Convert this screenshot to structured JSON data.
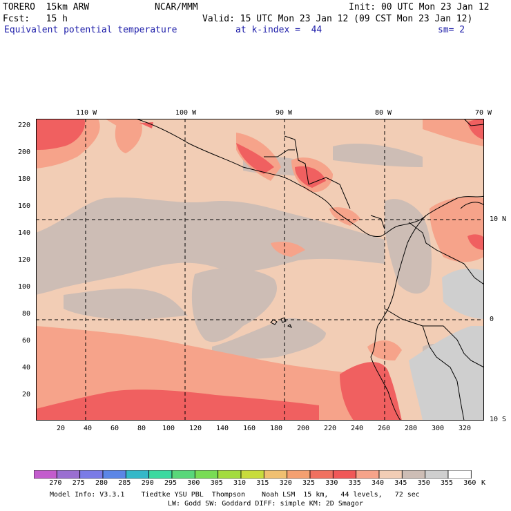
{
  "header": {
    "line1_left": "TORERO  15km ARW",
    "line1_center": "NCAR/MMM",
    "line1_right": "Init: 00 UTC Mon 23 Jan 12",
    "line2_left": "Fcst:   15 h",
    "line2_right": "Valid: 15 UTC Mon 23 Jan 12 (09 CST Mon 23 Jan 12)",
    "field_name": "Equivalent potential temperature",
    "level": "at k-index =  44",
    "smoothing": "sm= 2"
  },
  "map": {
    "longitude_labels": [
      "110 W",
      "100 W",
      "90 W",
      "80 W",
      "70 W"
    ],
    "latitude_labels": [
      "10 N",
      "0",
      "10 S"
    ],
    "y_grid_ticks": [
      "220",
      "200",
      "180",
      "160",
      "140",
      "120",
      "100",
      "80",
      "60",
      "40",
      "20"
    ],
    "x_grid_ticks": [
      "20",
      "40",
      "60",
      "80",
      "100",
      "120",
      "140",
      "160",
      "180",
      "200",
      "220",
      "240",
      "260",
      "280",
      "300",
      "320"
    ],
    "colors": {
      "band_340_345": "#f2cdb5",
      "band_345_350": "#cdbdb5",
      "band_350_355": "#cfcfcf",
      "band_335_340": "#f6a38a",
      "band_330_335": "#f06060",
      "coast": "#000000"
    }
  },
  "colorbar": {
    "labels": [
      "270",
      "275",
      "280",
      "285",
      "290",
      "295",
      "300",
      "305",
      "310",
      "315",
      "320",
      "325",
      "330",
      "335",
      "340",
      "345",
      "350",
      "355",
      "360"
    ],
    "unit": "K",
    "colors": [
      "#c35ccd",
      "#9a6fd1",
      "#7a7be6",
      "#5b86e6",
      "#35b8c8",
      "#3cd9a0",
      "#59d77a",
      "#79dc55",
      "#a3dc3f",
      "#c8dc3c",
      "#f0c070",
      "#f4a070",
      "#f07060",
      "#f05858",
      "#f6a38a",
      "#f2cdb5",
      "#cdbdb5",
      "#cfcfcf",
      "#ffffff"
    ]
  },
  "footer": {
    "line1": "Model Info: V3.3.1    Tiedtke YSU PBL  Thompson    Noah LSM  15 km,   44 levels,   72 sec",
    "line2": "LW: Godd SW: Goddard DIFF: simple KM: 2D Smagor"
  }
}
